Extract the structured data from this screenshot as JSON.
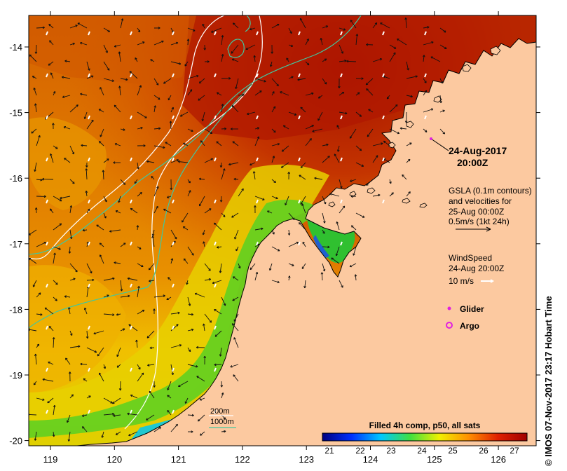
{
  "timestamp": {
    "date": "24-Aug-2017",
    "time": "20:00Z"
  },
  "gsla": {
    "line1": "GSLA (0.1m contours)",
    "line2": "and velocities for",
    "line3": "25-Aug 00:00Z",
    "scale": "0.5m/s (1kt 24h)"
  },
  "wind": {
    "line1": "WindSpeed",
    "line2": "24-Aug 20:00Z",
    "scale": "10 m/s"
  },
  "legend": {
    "glider": "Glider",
    "argo": "Argo",
    "glider_color": "#e020e0",
    "argo_color": "#e020e0"
  },
  "bathymetry": {
    "label_200": "200m",
    "label_1000": "1000m",
    "color_200": "#ffffff",
    "color_1000": "#40c8a0"
  },
  "colorbar": {
    "title": "Filled 4h comp, p50, all sats",
    "ticks": [
      "21",
      "22",
      "23",
      "24",
      "25",
      "26",
      "27"
    ],
    "stops": [
      "#000080",
      "#0030ff",
      "#00c8ff",
      "#40e040",
      "#f0f000",
      "#ff9000",
      "#e02000",
      "#a00000"
    ]
  },
  "axes": {
    "lon_ticks": [
      "119",
      "120",
      "121",
      "122",
      "123",
      "124",
      "125",
      "126"
    ],
    "lat_ticks": [
      "-14",
      "-15",
      "-16",
      "-17",
      "-18",
      "-19",
      "-20"
    ]
  },
  "land_color": "#fcc9a0",
  "credit": "© IMOS 07-Nov-2017 23:17 Hobart Time"
}
